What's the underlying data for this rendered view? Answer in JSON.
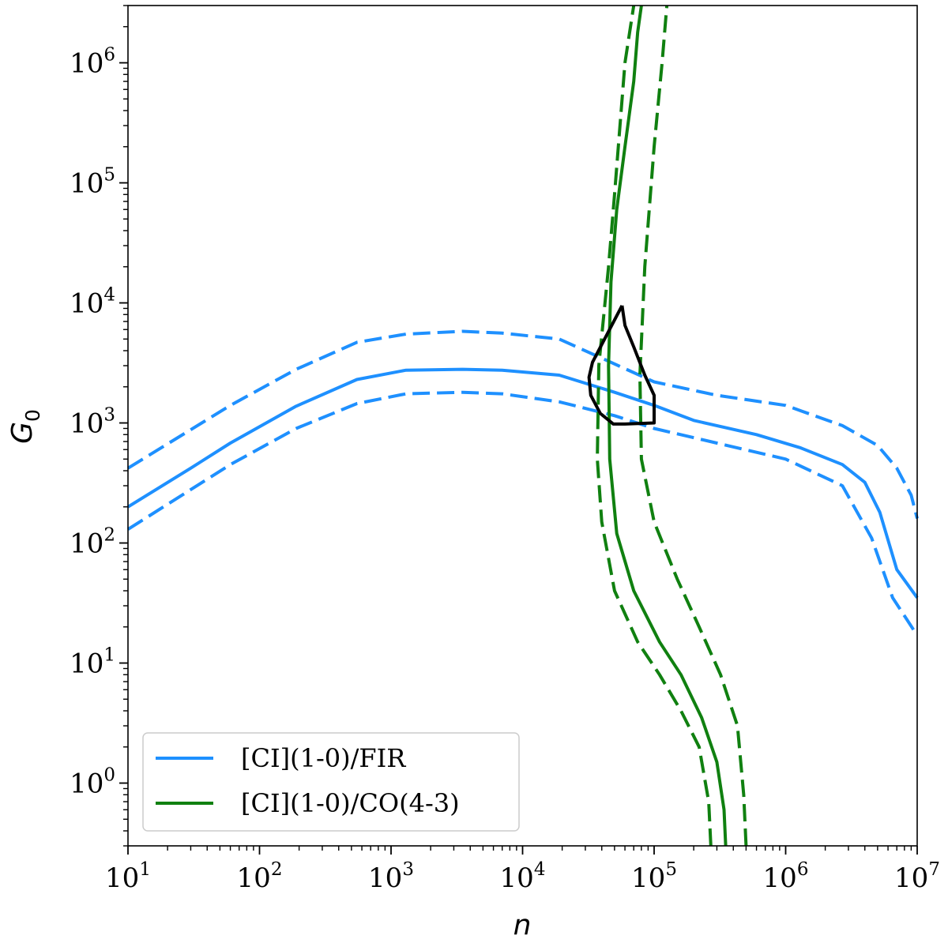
{
  "chart_data": {
    "type": "line",
    "xlabel": "n",
    "ylabel": "G",
    "ylabel_subscript": "0",
    "xscale": "log",
    "yscale": "log",
    "xlim": [
      10,
      10000000
    ],
    "ylim": [
      0.3,
      3000000
    ],
    "xticks": [
      {
        "value": 10,
        "base": "10",
        "exp": "1"
      },
      {
        "value": 100,
        "base": "10",
        "exp": "2"
      },
      {
        "value": 1000,
        "base": "10",
        "exp": "3"
      },
      {
        "value": 10000,
        "base": "10",
        "exp": "4"
      },
      {
        "value": 100000,
        "base": "10",
        "exp": "5"
      },
      {
        "value": 1000000,
        "base": "10",
        "exp": "6"
      },
      {
        "value": 10000000,
        "base": "10",
        "exp": "7"
      }
    ],
    "yticks": [
      {
        "value": 1,
        "base": "10",
        "exp": "0"
      },
      {
        "value": 10,
        "base": "10",
        "exp": "1"
      },
      {
        "value": 100,
        "base": "10",
        "exp": "2"
      },
      {
        "value": 1000,
        "base": "10",
        "exp": "3"
      },
      {
        "value": 10000,
        "base": "10",
        "exp": "4"
      },
      {
        "value": 100000,
        "base": "10",
        "exp": "5"
      },
      {
        "value": 1000000,
        "base": "10",
        "exp": "6"
      }
    ],
    "legend_position": "lower-left",
    "colors": {
      "ci_fir": "#1e90ff",
      "ci_co": "#108010",
      "contour": "#000000"
    },
    "series": [
      {
        "name": "[CI](1-0)/FIR",
        "color": "#1e90ff",
        "style": "solid",
        "x": [
          10,
          30,
          60,
          190,
          550,
          1300,
          3500,
          7000,
          19000,
          50000,
          100000,
          200000,
          600000,
          1300000,
          2700000,
          4000000,
          5200000,
          7000000,
          10000000
        ],
        "y": [
          200,
          420,
          680,
          1380,
          2300,
          2750,
          2800,
          2750,
          2500,
          1800,
          1400,
          1050,
          800,
          620,
          450,
          320,
          180,
          60,
          35
        ]
      },
      {
        "name": "",
        "color": "#1e90ff",
        "style": "dashed",
        "x": [
          10,
          60,
          190,
          550,
          1300,
          3500,
          7000,
          19000,
          50000,
          100000,
          300000,
          1000000,
          2700000,
          5000000,
          7000000,
          9000000,
          10000000
        ],
        "y": [
          420,
          1400,
          2800,
          4700,
          5500,
          5800,
          5600,
          5000,
          3100,
          2200,
          1700,
          1400,
          950,
          650,
          420,
          250,
          160
        ]
      },
      {
        "name": "",
        "color": "#1e90ff",
        "style": "dashed",
        "x": [
          10,
          60,
          190,
          550,
          1300,
          3500,
          7000,
          19000,
          50000,
          100000,
          300000,
          1000000,
          2700000,
          4500000,
          6500000,
          10000000
        ],
        "y": [
          130,
          450,
          900,
          1450,
          1750,
          1800,
          1750,
          1500,
          1150,
          900,
          680,
          500,
          300,
          110,
          35,
          17
        ]
      },
      {
        "name": "[CI](1-0)/CO(4-3)",
        "color": "#108010",
        "style": "solid",
        "x": [
          350000,
          340000,
          300000,
          230000,
          160000,
          110000,
          70000,
          52000,
          46000,
          45000,
          47000,
          52000,
          60000,
          70000,
          75000,
          80000
        ],
        "y": [
          0.3,
          0.6,
          1.5,
          3.5,
          8,
          15,
          40,
          120,
          500,
          3000,
          15000,
          60000,
          200000,
          700000,
          1800000,
          3000000
        ]
      },
      {
        "name": "",
        "color": "#108010",
        "style": "dashed",
        "x": [
          270000,
          260000,
          220000,
          160000,
          110000,
          75000,
          50000,
          40000,
          37000,
          38000,
          45000,
          50000,
          55000,
          60000,
          70000
        ],
        "y": [
          0.3,
          0.7,
          2,
          4,
          8,
          15,
          40,
          150,
          500,
          3000,
          20000,
          80000,
          300000,
          1000000,
          3000000
        ]
      },
      {
        "name": "",
        "color": "#108010",
        "style": "dashed",
        "x": [
          500000,
          480000,
          430000,
          320000,
          220000,
          150000,
          100000,
          80000,
          78000,
          85000,
          100000,
          115000,
          125000
        ],
        "y": [
          0.3,
          0.8,
          3,
          8,
          20,
          50,
          150,
          500,
          2500,
          20000,
          200000,
          1000000,
          3000000
        ]
      },
      {
        "name": "",
        "color": "#000000",
        "style": "solid",
        "x": [
          57000,
          42000,
          34000,
          32000,
          33000,
          39000,
          49000,
          60000,
          100000,
          100000,
          85000,
          70000,
          60000,
          57000
        ],
        "y": [
          9500,
          5000,
          3200,
          2400,
          1700,
          1200,
          980,
          980,
          1000,
          1700,
          2500,
          4300,
          6500,
          9500
        ]
      }
    ],
    "legend": [
      {
        "label": "[CI](1-0)/FIR",
        "color": "#1e90ff"
      },
      {
        "label": "[CI](1-0)/CO(4-3)",
        "color": "#108010"
      }
    ]
  }
}
